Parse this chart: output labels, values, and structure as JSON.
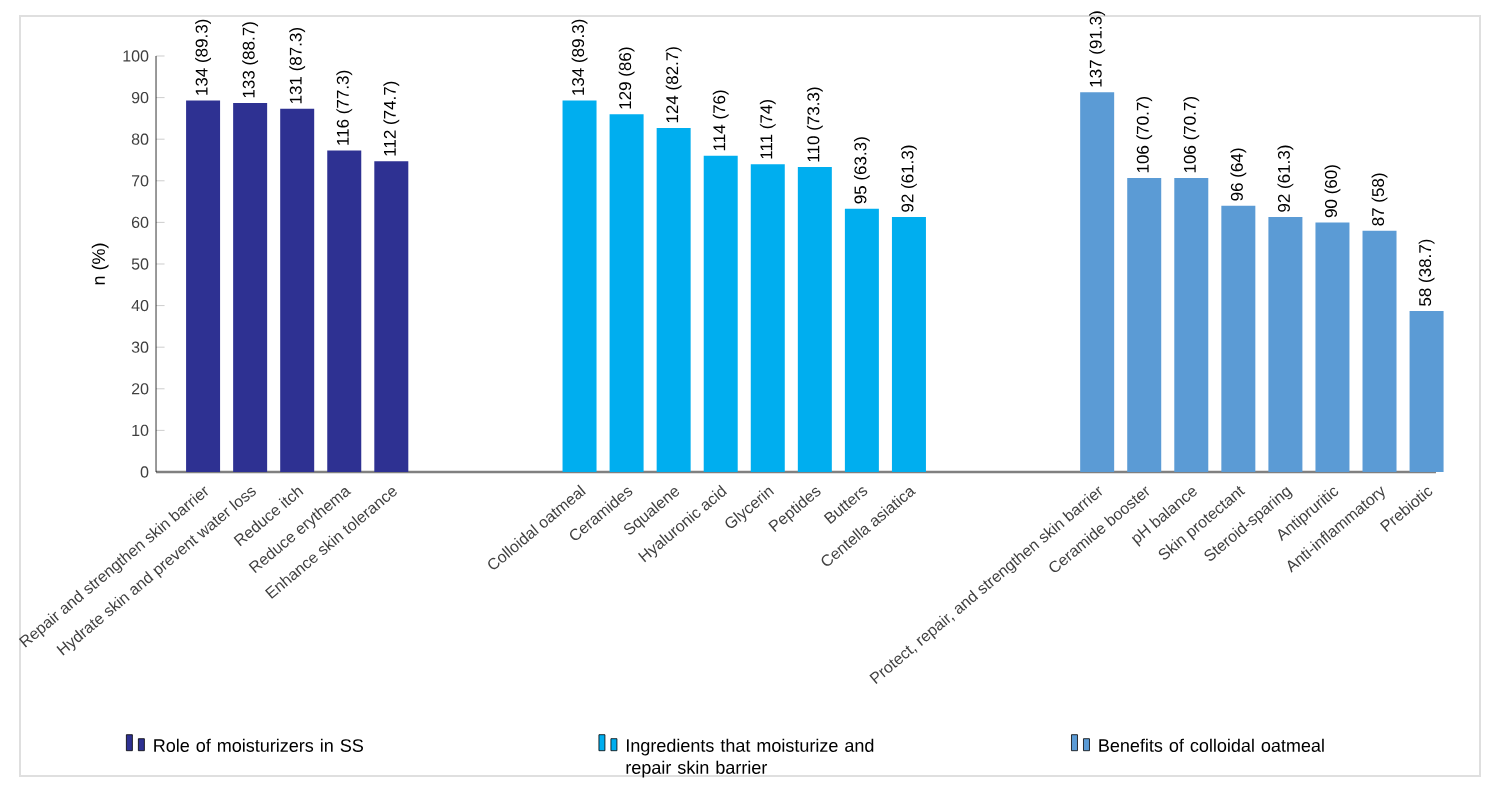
{
  "chart_data": {
    "type": "bar",
    "ylabel": "n (%)",
    "ylim": [
      0,
      100
    ],
    "yticks": [
      0,
      10,
      20,
      30,
      40,
      50,
      60,
      70,
      80,
      90,
      100
    ],
    "grid": false,
    "legend": "bottom",
    "categories": [
      "Repair and strengthen skin barrier",
      "Hydrate skin and prevent water loss",
      "Reduce itch",
      "Reduce erythema",
      "Enhance skin tolerance",
      null,
      null,
      null,
      "Colloidal oatmeal",
      "Ceramides",
      "Squalene",
      "Hyaluronic acid",
      "Glycerin",
      "Peptides",
      "Butters",
      "Centella asiatica",
      null,
      null,
      null,
      "Protect, repair, and strengthen skin barrier",
      "Ceramide booster",
      "pH balance",
      "Skin protectant",
      "Steroid-sparing",
      "Antipruritic",
      "Anti-inflammatory",
      "Prebiotic"
    ],
    "series": [
      {
        "name": "Role of moisturizers in SS",
        "color": "#2e3192",
        "values": [
          89.3,
          88.7,
          87.3,
          77.3,
          74.7,
          null,
          null,
          null,
          null,
          null,
          null,
          null,
          null,
          null,
          null,
          null,
          null,
          null,
          null,
          null,
          null,
          null,
          null,
          null,
          null,
          null,
          null
        ],
        "value_labels": [
          "134 (89.3)",
          "133 (88.7)",
          "131 (87.3)",
          "116 (77.3)",
          "112 (74.7)",
          null,
          null,
          null,
          null,
          null,
          null,
          null,
          null,
          null,
          null,
          null,
          null,
          null,
          null,
          null,
          null,
          null,
          null,
          null,
          null,
          null,
          null
        ]
      },
      {
        "name": "Ingredients that moisturize and repair skin barrier",
        "color": "#00aeef",
        "values": [
          null,
          null,
          null,
          null,
          null,
          null,
          null,
          null,
          89.3,
          86,
          82.7,
          76,
          74,
          73.3,
          63.3,
          61.3,
          null,
          null,
          null,
          null,
          null,
          null,
          null,
          null,
          null,
          null,
          null
        ],
        "value_labels": [
          null,
          null,
          null,
          null,
          null,
          null,
          null,
          null,
          "134 (89.3)",
          "129 (86)",
          "124 (82.7)",
          "114 (76)",
          "111 (74)",
          "110 (73.3)",
          "95 (63.3)",
          "92 (61.3)",
          null,
          null,
          null,
          null,
          null,
          null,
          null,
          null,
          null,
          null,
          null
        ]
      },
      {
        "name": "Benefits of colloidal oatmeal",
        "color": "#5b9bd5",
        "values": [
          null,
          null,
          null,
          null,
          null,
          null,
          null,
          null,
          null,
          null,
          null,
          null,
          null,
          null,
          null,
          null,
          null,
          null,
          null,
          91.3,
          70.7,
          70.7,
          64,
          61.3,
          60,
          58,
          38.7
        ],
        "value_labels": [
          null,
          null,
          null,
          null,
          null,
          null,
          null,
          null,
          null,
          null,
          null,
          null,
          null,
          null,
          null,
          null,
          null,
          null,
          null,
          "137 (91.3)",
          "106 (70.7)",
          "106 (70.7)",
          "96 (64)",
          "92 (61.3)",
          "90 (60)",
          "87 (58)",
          "58 (38.7)"
        ]
      }
    ]
  }
}
